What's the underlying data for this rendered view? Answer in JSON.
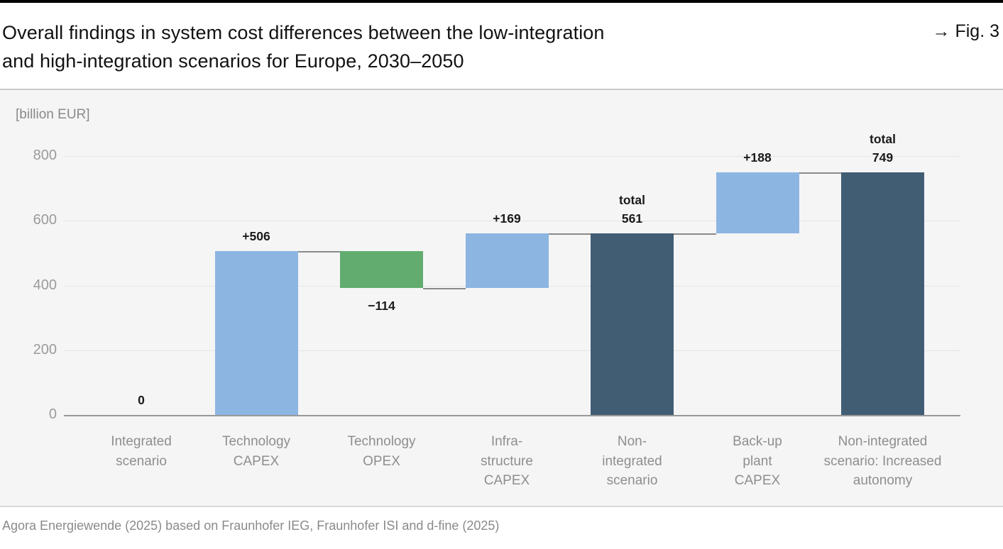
{
  "header": {
    "title_line1": "Overall findings in system cost differences between the low-integration",
    "title_line2": "and high-integration scenarios for Europe, 2030–2050",
    "fig_arrow": "→",
    "fig_label": "Fig. 3"
  },
  "footer": {
    "source": "Agora Energiewende (2025) based on Fraunhofer IEG, Fraunhofer ISI and d-fine (2025)"
  },
  "chart_data": {
    "type": "bar",
    "subtype": "waterfall",
    "title": "Overall findings in system cost differences between the low-integration and high-integration scenarios for Europe, 2030–2050",
    "unit_label": "[billion EUR]",
    "xlabel": "",
    "ylabel": "[billion EUR]",
    "ylim": [
      0,
      800
    ],
    "y_ticks": [
      0,
      200,
      400,
      600,
      800
    ],
    "grid": true,
    "legend": "none",
    "colors": {
      "increase": "#8cb5e2",
      "decrease": "#63ac6f",
      "total": "#415d74",
      "panel_bg": "#f5f5f6",
      "gridline": "#e5e5e5",
      "axis_line": "#999999",
      "connector": "#8a8a8a",
      "value_label": "#1a1a1a",
      "axis_text": "#9b9b9b",
      "category_text": "#8e8e8e"
    },
    "steps": [
      {
        "category_lines": [
          "Integrated",
          "scenario"
        ],
        "kind": "base",
        "value": 0,
        "cumulative": 0,
        "label_lines": [
          "0"
        ]
      },
      {
        "category_lines": [
          "Technology",
          "CAPEX"
        ],
        "kind": "increase",
        "value": 506,
        "cumulative": 506,
        "label_lines": [
          "+506"
        ]
      },
      {
        "category_lines": [
          "Technology",
          "OPEX"
        ],
        "kind": "decrease",
        "value": -114,
        "cumulative": 392,
        "label_lines": [
          "−114"
        ]
      },
      {
        "category_lines": [
          "Infra-",
          "structure",
          "CAPEX"
        ],
        "kind": "increase",
        "value": 169,
        "cumulative": 561,
        "label_lines": [
          "+169"
        ]
      },
      {
        "category_lines": [
          "Non-",
          "integrated",
          "scenario"
        ],
        "kind": "total",
        "value": 561,
        "cumulative": 561,
        "label_lines": [
          "total",
          "561"
        ]
      },
      {
        "category_lines": [
          "Back-up",
          "plant",
          "CAPEX"
        ],
        "kind": "increase",
        "value": 188,
        "cumulative": 749,
        "label_lines": [
          "+188"
        ]
      },
      {
        "category_lines": [
          "Non-integrated",
          "scenario: Increased",
          "autonomy"
        ],
        "kind": "total",
        "value": 749,
        "cumulative": 749,
        "label_lines": [
          "total",
          "749"
        ]
      }
    ]
  }
}
